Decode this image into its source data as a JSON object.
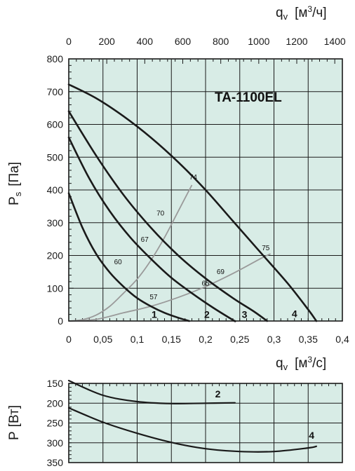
{
  "chart_data": [
    {
      "type": "line",
      "title": "TA-1100EL",
      "xlabel": "qv [м3/с]",
      "xlabel_main": "q",
      "xlabel_sub": "v",
      "xlabel_unit_pre": "[м",
      "xlabel_unit_sup": "3",
      "xlabel_unit_post": "/с]",
      "x2label_main": "q",
      "x2label_sub": "v",
      "x2label_unit_pre": "[м",
      "x2label_unit_sup": "3",
      "x2label_unit_post": "/ч]",
      "ylabel_main": "P",
      "ylabel_sub": "s",
      "ylabel_unit": "[Па]",
      "xlim": [
        0,
        0.4
      ],
      "ylim": [
        0,
        800
      ],
      "x2lim": [
        0,
        1440
      ],
      "x_ticks": [
        0,
        0.05,
        0.1,
        0.15,
        0.2,
        0.25,
        0.3,
        0.35,
        0.4
      ],
      "x_tick_labels": [
        "0",
        "0,05",
        "0,1",
        "0,15",
        "0,2",
        "0,25",
        "0,3",
        "0,35",
        "0,4"
      ],
      "x2_ticks": [
        0,
        200,
        400,
        600,
        800,
        1000,
        1200,
        1400
      ],
      "x2_tick_labels": [
        "0",
        "200",
        "400",
        "600",
        "800",
        "1000",
        "1200",
        "1400"
      ],
      "y_ticks": [
        0,
        100,
        200,
        300,
        400,
        500,
        600,
        700,
        800
      ],
      "y_tick_labels": [
        "0",
        "100",
        "200",
        "300",
        "400",
        "500",
        "600",
        "700",
        "800"
      ],
      "grid": true,
      "background": "#d8ece6",
      "curve_color": "#1a1a1a",
      "system_curve_color": "#9a9a9a",
      "series": [
        {
          "name": "1",
          "x": [
            0,
            0.02,
            0.04,
            0.06,
            0.08,
            0.1,
            0.12,
            0.14,
            0.16,
            0.176
          ],
          "y": [
            390,
            285,
            205,
            148,
            105,
            70,
            45,
            25,
            10,
            0
          ]
        },
        {
          "name": "2",
          "x": [
            0,
            0.03,
            0.06,
            0.09,
            0.12,
            0.15,
            0.18,
            0.21,
            0.24,
            0.243
          ],
          "y": [
            560,
            435,
            335,
            255,
            190,
            132,
            85,
            42,
            3,
            0
          ]
        },
        {
          "name": "3",
          "x": [
            0,
            0.04,
            0.08,
            0.12,
            0.16,
            0.2,
            0.24,
            0.27,
            0.29
          ],
          "y": [
            640,
            505,
            385,
            285,
            200,
            130,
            70,
            30,
            0
          ]
        },
        {
          "name": "4",
          "x": [
            0,
            0.04,
            0.08,
            0.12,
            0.16,
            0.2,
            0.24,
            0.28,
            0.32,
            0.35,
            0.362
          ],
          "y": [
            722,
            680,
            625,
            560,
            485,
            400,
            305,
            210,
            115,
            35,
            0
          ]
        }
      ],
      "system_curves": [
        {
          "x": [
            0,
            0.02,
            0.04,
            0.06,
            0.08,
            0.1,
            0.12,
            0.14,
            0.16,
            0.18
          ],
          "y": [
            0,
            4,
            18,
            45,
            85,
            128,
            185,
            255,
            335,
            415
          ]
        },
        {
          "x": [
            0,
            0.04,
            0.08,
            0.12,
            0.16,
            0.2,
            0.24,
            0.28,
            0.295
          ],
          "y": [
            0,
            5,
            25,
            45,
            72,
            105,
            145,
            190,
            205
          ]
        }
      ],
      "curve_numbers": [
        {
          "text": "1",
          "x": 0.125,
          "y": 10
        },
        {
          "text": "2",
          "x": 0.202,
          "y": 10
        },
        {
          "text": "3",
          "x": 0.257,
          "y": 10
        },
        {
          "text": "4",
          "x": 0.33,
          "y": 12
        }
      ],
      "noise_labels": [
        {
          "text": "74",
          "x": 0.182,
          "y": 432
        },
        {
          "text": "70",
          "x": 0.134,
          "y": 322
        },
        {
          "text": "67",
          "x": 0.111,
          "y": 242
        },
        {
          "text": "60",
          "x": 0.072,
          "y": 173
        },
        {
          "text": "65",
          "x": 0.2,
          "y": 108
        },
        {
          "text": "69",
          "x": 0.222,
          "y": 143
        },
        {
          "text": "57",
          "x": 0.124,
          "y": 66
        },
        {
          "text": "75",
          "x": 0.288,
          "y": 216
        }
      ]
    },
    {
      "type": "line",
      "ylabel_main": "P",
      "ylabel_unit": "[Вт]",
      "xlim": [
        0,
        0.4
      ],
      "ylim": [
        150,
        350
      ],
      "y_inverted": true,
      "y_ticks": [
        150,
        200,
        250,
        300,
        350
      ],
      "y_tick_labels": [
        "150",
        "200",
        "250",
        "300",
        "350"
      ],
      "grid": true,
      "background": "#d8ece6",
      "series": [
        {
          "name": "2",
          "x": [
            0,
            0.05,
            0.1,
            0.15,
            0.2,
            0.243
          ],
          "y": [
            143,
            180,
            196,
            201,
            200,
            199
          ]
        },
        {
          "name": "4",
          "x": [
            0,
            0.05,
            0.1,
            0.15,
            0.2,
            0.25,
            0.3,
            0.35,
            0.362
          ],
          "y": [
            212,
            248,
            276,
            299,
            315,
            322,
            322,
            313,
            309
          ]
        }
      ],
      "curve_numbers": [
        {
          "text": "2",
          "x": 0.218,
          "y": 185
        },
        {
          "text": "4",
          "x": 0.355,
          "y": 290
        }
      ]
    }
  ]
}
